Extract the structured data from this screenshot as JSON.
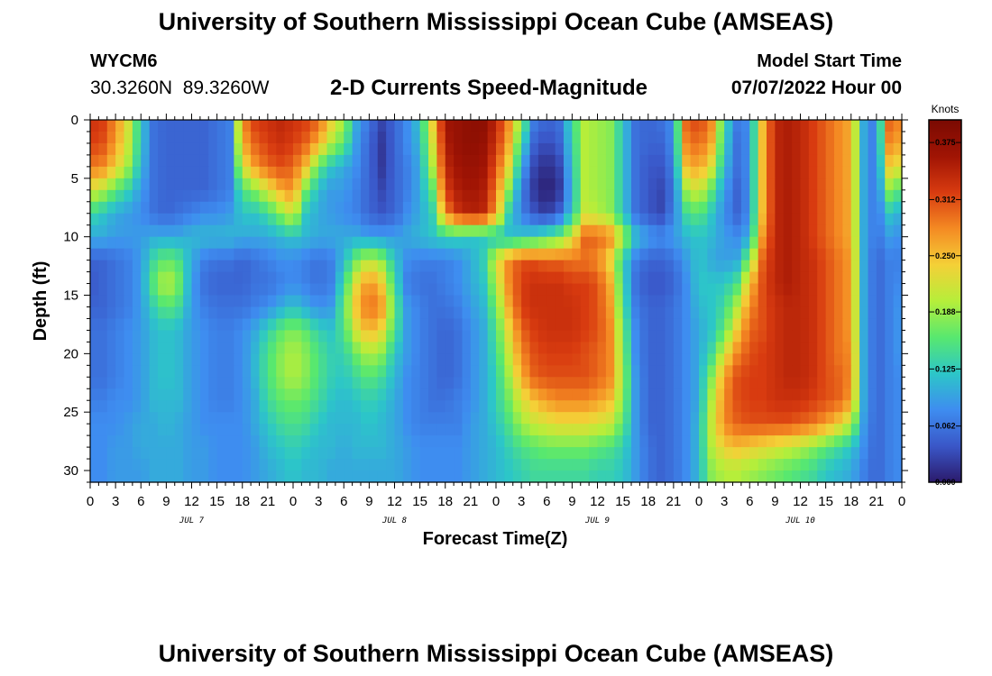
{
  "header": {
    "title_top": "University of Southern Mississippi Ocean Cube (AMSEAS)",
    "title_bottom": "University of Southern Mississippi Ocean Cube (AMSEAS)",
    "station_id": "WYCM6",
    "station_coords": "30.3260N  89.3260W",
    "plot_subtitle": "2-D Currents Speed-Magnitude",
    "model_start_label": "Model Start Time",
    "model_start_value": "07/07/2022 Hour 00"
  },
  "colors": {
    "colormap": [
      "#2b1a6b",
      "#3a57c8",
      "#3e8df0",
      "#2cc6c8",
      "#58e86f",
      "#b6ee3a",
      "#f4d037",
      "#f48a23",
      "#d83b10",
      "#a01404",
      "#7a0a02"
    ]
  },
  "chart_data": {
    "type": "heatmap",
    "title": "2-D Currents Speed-Magnitude",
    "xlabel": "Forecast Time(Z)",
    "ylabel": "Depth (ft)",
    "x_tick_labels": [
      "0",
      "3",
      "6",
      "9",
      "12",
      "15",
      "18",
      "21",
      "0",
      "3",
      "6",
      "9",
      "12",
      "15",
      "18",
      "21",
      "0",
      "3",
      "6",
      "9",
      "12",
      "15",
      "18",
      "21",
      "0",
      "3",
      "6",
      "9",
      "12",
      "15",
      "18",
      "21",
      "0"
    ],
    "day_labels": [
      "JUL 7",
      "JUL 8",
      "JUL 9",
      "JUL 10"
    ],
    "y_ticks": [
      0,
      5,
      10,
      15,
      20,
      25,
      30
    ],
    "ylim": [
      0,
      31
    ],
    "xlim_hours": [
      0,
      96
    ],
    "y_inverted": true,
    "colorbar": {
      "label": "Knots",
      "min": 0.0,
      "max": 0.4,
      "tick_labels": [
        "0.375",
        "0.312",
        "0.250",
        "0.188",
        "0.125",
        "0.062",
        "0.000"
      ],
      "tick_values": [
        0.375,
        0.312,
        0.25,
        0.188,
        0.125,
        0.062,
        0.0
      ]
    },
    "speed_knots": {
      "depth_ft": [
        0,
        2,
        4,
        6,
        8,
        10,
        12,
        14,
        16,
        18,
        20,
        22,
        24,
        26,
        28,
        30
      ],
      "hours": [
        0,
        1.5,
        3,
        4.5,
        6,
        7.5,
        9,
        10.5,
        12,
        13.5,
        15,
        16.5,
        18,
        19.5,
        21,
        22.5,
        24,
        25.5,
        27,
        28.5,
        30,
        31.5,
        33,
        34.5,
        36,
        37.5,
        39,
        40.5,
        42,
        43.5,
        45,
        46.5,
        48,
        49.5,
        51,
        52.5,
        54,
        55.5,
        57,
        58.5,
        60,
        61.5,
        63,
        64.5,
        66,
        67.5,
        69,
        70.5,
        72,
        73.5,
        75,
        76.5,
        78,
        79.5,
        81,
        82.5,
        84,
        85.5,
        87,
        88.5,
        90,
        91.5,
        93,
        94.5,
        96
      ],
      "rows": [
        [
          0.33,
          0.32,
          0.28,
          0.22,
          0.12,
          0.06,
          0.05,
          0.05,
          0.05,
          0.05,
          0.06,
          0.07,
          0.28,
          0.32,
          0.33,
          0.34,
          0.33,
          0.32,
          0.3,
          0.24,
          0.19,
          0.1,
          0.06,
          0.03,
          0.05,
          0.08,
          0.12,
          0.24,
          0.36,
          0.37,
          0.38,
          0.38,
          0.34,
          0.28,
          0.18,
          0.07,
          0.05,
          0.06,
          0.14,
          0.2,
          0.19,
          0.18,
          0.12,
          0.06,
          0.05,
          0.06,
          0.08,
          0.3,
          0.32,
          0.28,
          0.14,
          0.07,
          0.08,
          0.25,
          0.34,
          0.35,
          0.34,
          0.32,
          0.3,
          0.28,
          0.26,
          0.1,
          0.06,
          0.3,
          0.28
        ],
        [
          0.32,
          0.31,
          0.27,
          0.21,
          0.12,
          0.06,
          0.05,
          0.05,
          0.05,
          0.05,
          0.06,
          0.07,
          0.26,
          0.3,
          0.32,
          0.33,
          0.32,
          0.3,
          0.26,
          0.2,
          0.16,
          0.09,
          0.05,
          0.02,
          0.05,
          0.08,
          0.11,
          0.22,
          0.35,
          0.37,
          0.38,
          0.37,
          0.33,
          0.26,
          0.14,
          0.05,
          0.03,
          0.05,
          0.13,
          0.2,
          0.19,
          0.18,
          0.12,
          0.06,
          0.05,
          0.05,
          0.08,
          0.28,
          0.3,
          0.26,
          0.13,
          0.06,
          0.08,
          0.25,
          0.34,
          0.35,
          0.34,
          0.32,
          0.3,
          0.28,
          0.26,
          0.1,
          0.06,
          0.28,
          0.26
        ],
        [
          0.29,
          0.28,
          0.24,
          0.19,
          0.11,
          0.06,
          0.05,
          0.05,
          0.05,
          0.05,
          0.06,
          0.07,
          0.22,
          0.27,
          0.3,
          0.31,
          0.3,
          0.25,
          0.16,
          0.12,
          0.1,
          0.08,
          0.05,
          0.02,
          0.05,
          0.07,
          0.1,
          0.2,
          0.34,
          0.36,
          0.37,
          0.36,
          0.31,
          0.23,
          0.1,
          0.03,
          0.01,
          0.03,
          0.12,
          0.2,
          0.19,
          0.18,
          0.12,
          0.06,
          0.04,
          0.04,
          0.07,
          0.25,
          0.27,
          0.22,
          0.11,
          0.06,
          0.08,
          0.25,
          0.34,
          0.35,
          0.34,
          0.32,
          0.3,
          0.28,
          0.26,
          0.1,
          0.06,
          0.24,
          0.22
        ],
        [
          0.22,
          0.2,
          0.16,
          0.13,
          0.09,
          0.06,
          0.05,
          0.05,
          0.05,
          0.05,
          0.06,
          0.07,
          0.15,
          0.18,
          0.22,
          0.26,
          0.28,
          0.17,
          0.11,
          0.09,
          0.09,
          0.07,
          0.05,
          0.03,
          0.05,
          0.07,
          0.1,
          0.16,
          0.32,
          0.35,
          0.36,
          0.35,
          0.29,
          0.18,
          0.07,
          0.02,
          0.0,
          0.02,
          0.11,
          0.2,
          0.19,
          0.18,
          0.12,
          0.06,
          0.04,
          0.03,
          0.06,
          0.19,
          0.22,
          0.16,
          0.09,
          0.05,
          0.08,
          0.25,
          0.34,
          0.35,
          0.34,
          0.32,
          0.3,
          0.28,
          0.26,
          0.1,
          0.06,
          0.18,
          0.15
        ],
        [
          0.14,
          0.12,
          0.1,
          0.09,
          0.08,
          0.06,
          0.05,
          0.06,
          0.07,
          0.08,
          0.08,
          0.09,
          0.12,
          0.12,
          0.14,
          0.18,
          0.22,
          0.12,
          0.1,
          0.09,
          0.08,
          0.07,
          0.05,
          0.04,
          0.05,
          0.08,
          0.1,
          0.13,
          0.28,
          0.33,
          0.35,
          0.34,
          0.27,
          0.13,
          0.07,
          0.04,
          0.02,
          0.05,
          0.12,
          0.21,
          0.2,
          0.18,
          0.12,
          0.06,
          0.04,
          0.03,
          0.07,
          0.14,
          0.16,
          0.12,
          0.08,
          0.05,
          0.08,
          0.25,
          0.34,
          0.35,
          0.34,
          0.32,
          0.3,
          0.28,
          0.26,
          0.1,
          0.06,
          0.12,
          0.1
        ],
        [
          0.1,
          0.1,
          0.09,
          0.09,
          0.09,
          0.1,
          0.1,
          0.1,
          0.11,
          0.11,
          0.11,
          0.11,
          0.1,
          0.1,
          0.1,
          0.11,
          0.12,
          0.11,
          0.1,
          0.1,
          0.1,
          0.1,
          0.09,
          0.09,
          0.09,
          0.1,
          0.11,
          0.12,
          0.13,
          0.13,
          0.12,
          0.12,
          0.12,
          0.11,
          0.12,
          0.13,
          0.15,
          0.17,
          0.22,
          0.3,
          0.3,
          0.28,
          0.2,
          0.12,
          0.09,
          0.08,
          0.09,
          0.11,
          0.12,
          0.11,
          0.09,
          0.08,
          0.1,
          0.27,
          0.34,
          0.35,
          0.34,
          0.32,
          0.3,
          0.28,
          0.26,
          0.1,
          0.06,
          0.09,
          0.08
        ],
        [
          0.05,
          0.05,
          0.06,
          0.07,
          0.09,
          0.14,
          0.17,
          0.15,
          0.1,
          0.07,
          0.06,
          0.06,
          0.05,
          0.06,
          0.07,
          0.08,
          0.08,
          0.07,
          0.06,
          0.07,
          0.11,
          0.17,
          0.21,
          0.18,
          0.12,
          0.08,
          0.07,
          0.07,
          0.07,
          0.08,
          0.1,
          0.13,
          0.22,
          0.28,
          0.31,
          0.31,
          0.3,
          0.3,
          0.29,
          0.29,
          0.28,
          0.23,
          0.13,
          0.07,
          0.05,
          0.05,
          0.06,
          0.09,
          0.12,
          0.1,
          0.09,
          0.1,
          0.18,
          0.3,
          0.34,
          0.35,
          0.34,
          0.33,
          0.31,
          0.29,
          0.27,
          0.1,
          0.05,
          0.07,
          0.07
        ],
        [
          0.04,
          0.05,
          0.06,
          0.07,
          0.09,
          0.16,
          0.21,
          0.17,
          0.09,
          0.06,
          0.05,
          0.05,
          0.05,
          0.06,
          0.06,
          0.07,
          0.08,
          0.07,
          0.06,
          0.07,
          0.14,
          0.23,
          0.28,
          0.24,
          0.14,
          0.07,
          0.06,
          0.06,
          0.07,
          0.08,
          0.1,
          0.12,
          0.2,
          0.28,
          0.32,
          0.33,
          0.33,
          0.33,
          0.32,
          0.32,
          0.31,
          0.26,
          0.14,
          0.06,
          0.04,
          0.04,
          0.05,
          0.08,
          0.12,
          0.12,
          0.12,
          0.15,
          0.25,
          0.31,
          0.34,
          0.35,
          0.34,
          0.33,
          0.31,
          0.29,
          0.27,
          0.1,
          0.05,
          0.07,
          0.08
        ],
        [
          0.05,
          0.05,
          0.06,
          0.07,
          0.09,
          0.13,
          0.16,
          0.14,
          0.09,
          0.07,
          0.06,
          0.06,
          0.06,
          0.07,
          0.08,
          0.1,
          0.12,
          0.1,
          0.08,
          0.09,
          0.16,
          0.25,
          0.3,
          0.27,
          0.16,
          0.09,
          0.07,
          0.06,
          0.06,
          0.07,
          0.09,
          0.11,
          0.17,
          0.26,
          0.32,
          0.33,
          0.33,
          0.33,
          0.33,
          0.32,
          0.31,
          0.27,
          0.15,
          0.07,
          0.05,
          0.05,
          0.06,
          0.08,
          0.11,
          0.12,
          0.14,
          0.2,
          0.28,
          0.31,
          0.33,
          0.34,
          0.34,
          0.33,
          0.31,
          0.29,
          0.27,
          0.1,
          0.05,
          0.07,
          0.09
        ],
        [
          0.06,
          0.06,
          0.07,
          0.08,
          0.09,
          0.11,
          0.12,
          0.11,
          0.09,
          0.08,
          0.07,
          0.07,
          0.08,
          0.1,
          0.13,
          0.16,
          0.18,
          0.16,
          0.13,
          0.12,
          0.15,
          0.22,
          0.26,
          0.23,
          0.15,
          0.09,
          0.07,
          0.06,
          0.05,
          0.06,
          0.08,
          0.1,
          0.15,
          0.23,
          0.3,
          0.32,
          0.33,
          0.33,
          0.33,
          0.32,
          0.31,
          0.28,
          0.17,
          0.08,
          0.05,
          0.05,
          0.06,
          0.08,
          0.1,
          0.12,
          0.16,
          0.24,
          0.3,
          0.31,
          0.33,
          0.34,
          0.34,
          0.33,
          0.31,
          0.29,
          0.27,
          0.1,
          0.05,
          0.07,
          0.09
        ],
        [
          0.06,
          0.06,
          0.07,
          0.08,
          0.09,
          0.11,
          0.12,
          0.11,
          0.09,
          0.08,
          0.07,
          0.07,
          0.08,
          0.11,
          0.15,
          0.18,
          0.2,
          0.18,
          0.15,
          0.13,
          0.13,
          0.17,
          0.2,
          0.18,
          0.12,
          0.09,
          0.07,
          0.06,
          0.05,
          0.06,
          0.08,
          0.1,
          0.14,
          0.21,
          0.28,
          0.31,
          0.32,
          0.32,
          0.32,
          0.31,
          0.3,
          0.28,
          0.18,
          0.08,
          0.05,
          0.05,
          0.06,
          0.08,
          0.1,
          0.14,
          0.22,
          0.28,
          0.31,
          0.32,
          0.33,
          0.34,
          0.34,
          0.33,
          0.31,
          0.29,
          0.28,
          0.1,
          0.05,
          0.07,
          0.09
        ],
        [
          0.06,
          0.06,
          0.07,
          0.08,
          0.09,
          0.11,
          0.12,
          0.11,
          0.09,
          0.08,
          0.07,
          0.07,
          0.08,
          0.11,
          0.15,
          0.18,
          0.2,
          0.18,
          0.15,
          0.13,
          0.12,
          0.14,
          0.16,
          0.14,
          0.11,
          0.08,
          0.07,
          0.06,
          0.05,
          0.06,
          0.08,
          0.1,
          0.13,
          0.19,
          0.26,
          0.3,
          0.31,
          0.31,
          0.31,
          0.31,
          0.3,
          0.28,
          0.19,
          0.09,
          0.05,
          0.05,
          0.06,
          0.08,
          0.1,
          0.18,
          0.27,
          0.31,
          0.32,
          0.32,
          0.33,
          0.34,
          0.34,
          0.33,
          0.31,
          0.3,
          0.28,
          0.1,
          0.05,
          0.07,
          0.08
        ],
        [
          0.07,
          0.07,
          0.08,
          0.08,
          0.09,
          0.11,
          0.11,
          0.11,
          0.09,
          0.08,
          0.07,
          0.07,
          0.08,
          0.1,
          0.14,
          0.16,
          0.17,
          0.16,
          0.14,
          0.12,
          0.11,
          0.12,
          0.13,
          0.12,
          0.1,
          0.08,
          0.07,
          0.06,
          0.06,
          0.07,
          0.08,
          0.1,
          0.13,
          0.17,
          0.22,
          0.25,
          0.27,
          0.28,
          0.28,
          0.28,
          0.27,
          0.25,
          0.18,
          0.09,
          0.05,
          0.05,
          0.06,
          0.08,
          0.1,
          0.2,
          0.28,
          0.31,
          0.32,
          0.32,
          0.33,
          0.33,
          0.33,
          0.32,
          0.31,
          0.3,
          0.27,
          0.1,
          0.05,
          0.07,
          0.08
        ],
        [
          0.08,
          0.08,
          0.08,
          0.09,
          0.1,
          0.1,
          0.11,
          0.1,
          0.09,
          0.08,
          0.08,
          0.08,
          0.08,
          0.1,
          0.12,
          0.14,
          0.15,
          0.14,
          0.12,
          0.11,
          0.11,
          0.11,
          0.12,
          0.11,
          0.1,
          0.08,
          0.07,
          0.07,
          0.07,
          0.07,
          0.09,
          0.1,
          0.12,
          0.15,
          0.19,
          0.21,
          0.22,
          0.23,
          0.23,
          0.23,
          0.22,
          0.21,
          0.16,
          0.09,
          0.05,
          0.05,
          0.06,
          0.08,
          0.11,
          0.21,
          0.28,
          0.3,
          0.31,
          0.31,
          0.31,
          0.31,
          0.3,
          0.29,
          0.27,
          0.24,
          0.2,
          0.09,
          0.05,
          0.07,
          0.08
        ],
        [
          0.08,
          0.08,
          0.09,
          0.09,
          0.1,
          0.1,
          0.1,
          0.1,
          0.09,
          0.09,
          0.08,
          0.08,
          0.08,
          0.09,
          0.11,
          0.12,
          0.13,
          0.12,
          0.11,
          0.11,
          0.1,
          0.11,
          0.11,
          0.11,
          0.1,
          0.09,
          0.08,
          0.08,
          0.08,
          0.08,
          0.09,
          0.1,
          0.11,
          0.13,
          0.15,
          0.16,
          0.17,
          0.17,
          0.17,
          0.17,
          0.16,
          0.15,
          0.13,
          0.09,
          0.06,
          0.05,
          0.06,
          0.08,
          0.11,
          0.2,
          0.24,
          0.25,
          0.24,
          0.23,
          0.22,
          0.21,
          0.2,
          0.18,
          0.16,
          0.14,
          0.12,
          0.08,
          0.05,
          0.07,
          0.08
        ],
        [
          0.08,
          0.08,
          0.09,
          0.09,
          0.09,
          0.1,
          0.1,
          0.1,
          0.09,
          0.09,
          0.08,
          0.08,
          0.08,
          0.09,
          0.1,
          0.11,
          0.12,
          0.11,
          0.11,
          0.1,
          0.1,
          0.1,
          0.1,
          0.1,
          0.1,
          0.09,
          0.08,
          0.08,
          0.08,
          0.08,
          0.09,
          0.1,
          0.11,
          0.12,
          0.13,
          0.14,
          0.14,
          0.14,
          0.14,
          0.14,
          0.13,
          0.13,
          0.12,
          0.09,
          0.06,
          0.05,
          0.06,
          0.08,
          0.11,
          0.18,
          0.2,
          0.2,
          0.19,
          0.18,
          0.17,
          0.16,
          0.15,
          0.14,
          0.12,
          0.11,
          0.1,
          0.07,
          0.05,
          0.07,
          0.08
        ]
      ]
    }
  },
  "labels": {
    "colorbar_unit": "Knots",
    "xlabel": "Forecast Time(Z)",
    "ylabel": "Depth (ft)"
  }
}
